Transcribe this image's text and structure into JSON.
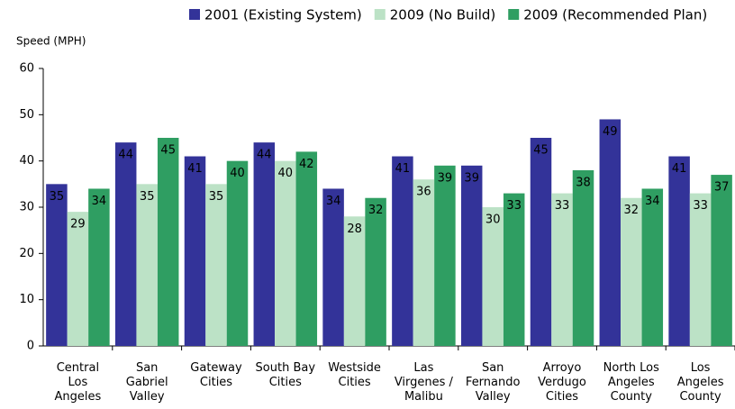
{
  "chart_data": {
    "type": "bar",
    "y_label": "Speed (MPH)",
    "categories": [
      "Central Los Angeles",
      "San Gabriel Valley",
      "Gateway Cities",
      "South Bay Cities",
      "Westside Cities",
      "Las Virgenes / Malibu",
      "San Fernando Valley",
      "Arroyo Verdugo Cities",
      "North Los Angeles County",
      "Los Angeles County"
    ],
    "series": [
      {
        "name": "2001 (Existing System)",
        "color": "#333399",
        "label_color": "#ffffff",
        "values": [
          35,
          44,
          41,
          44,
          34,
          41,
          39,
          45,
          49,
          41
        ]
      },
      {
        "name": "2009 (No Build)",
        "color": "#bce2c6",
        "label_color": "#000000",
        "values": [
          29,
          35,
          35,
          40,
          28,
          36,
          30,
          33,
          32,
          33
        ]
      },
      {
        "name": "2009 (Recommended Plan)",
        "color": "#2f9e62",
        "label_color": "#ffffff",
        "values": [
          34,
          45,
          40,
          42,
          32,
          39,
          33,
          38,
          34,
          37
        ]
      }
    ],
    "ylim": [
      0,
      60
    ],
    "yticks": [
      0,
      10,
      20,
      30,
      40,
      50,
      60
    ],
    "grid": false,
    "legend": "top"
  }
}
